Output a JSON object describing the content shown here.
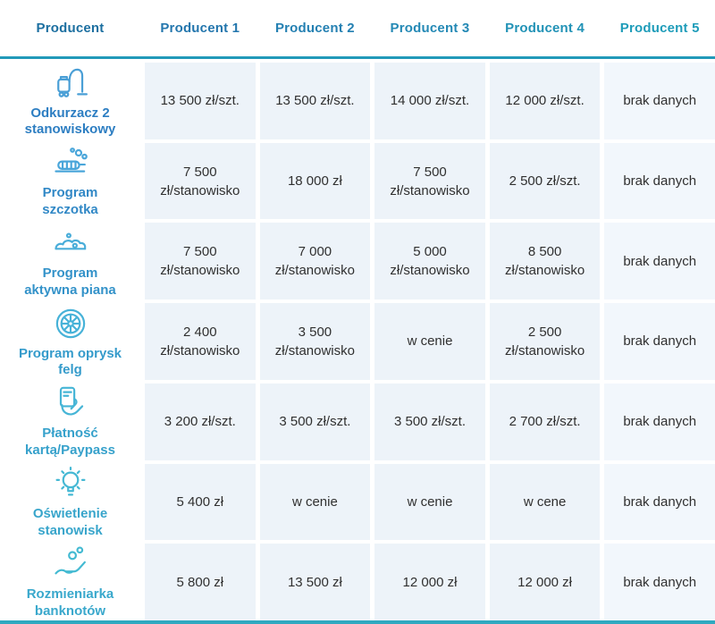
{
  "table": {
    "header": {
      "first_column": "Producent",
      "producers": [
        "Producent 1",
        "Producent 2",
        "Producent 3",
        "Producent 4",
        "Producent 5"
      ]
    },
    "rows": [
      {
        "label": "Odkurzacz 2 stanowiskowy",
        "icon": "vacuum-icon",
        "values": [
          "13 500 zł/szt.",
          "13 500 zł/szt.",
          "14 000 zł/szt.",
          "12 000 zł/szt.",
          "brak danych"
        ]
      },
      {
        "label": "Program szczotka",
        "icon": "brush-icon",
        "values": [
          "7 500 zł/stanowisko",
          "18 000 zł",
          "7 500 zł/stanowisko",
          "2 500 zł/szt.",
          "brak danych"
        ]
      },
      {
        "label": "Program aktywna piana",
        "icon": "foam-icon",
        "values": [
          "7 500 zł/stanowisko",
          "7 000 zł/stanowisko",
          "5 000 zł/stanowisko",
          "8 500 zł/stanowisko",
          "brak danych"
        ]
      },
      {
        "label": "Program oprysk felg",
        "icon": "wheel-icon",
        "values": [
          "2 400 zł/stanowisko",
          "3 500 zł/stanowisko",
          "w cenie",
          "2 500 zł/stanowisko",
          "brak danych"
        ]
      },
      {
        "label": "Płatność kartą/Paypass",
        "icon": "card-icon",
        "values": [
          "3 200 zł/szt.",
          "3 500 zł/szt.",
          "3 500 zł/szt.",
          "2 700 zł/szt.",
          "brak danych"
        ]
      },
      {
        "label": "Oświetlenie stanowisk",
        "icon": "bulb-icon",
        "values": [
          "5 400 zł",
          "w cenie",
          "w cenie",
          "w cene",
          "brak danych"
        ]
      },
      {
        "label": "Rozmieniarka banknotów",
        "icon": "coins-icon",
        "values": [
          "5 800 zł",
          "13 500 zł",
          "12 000 zł",
          "12 000 zł",
          "brak danych"
        ]
      }
    ]
  },
  "colors": {
    "header_first": "#1c6fa0",
    "header_producers": [
      "#2376ad",
      "#2480b2",
      "#2489b5",
      "#2192b6",
      "#1e9cb9"
    ],
    "divider": "#2299b9",
    "bottom_line": "#2fa9c0",
    "row_labels": [
      "#2d7ec2",
      "#3188c6",
      "#3392c9",
      "#359bcb",
      "#36a1cb",
      "#38a5cb",
      "#39a8cc"
    ],
    "row_icons": [
      "#4a9fd6",
      "#4aa6da",
      "#49add9",
      "#47b2d8",
      "#46b5d6",
      "#45b8d4",
      "#44bad2"
    ],
    "cell_bg": "#edf3f9",
    "cell_text": "#303030"
  }
}
